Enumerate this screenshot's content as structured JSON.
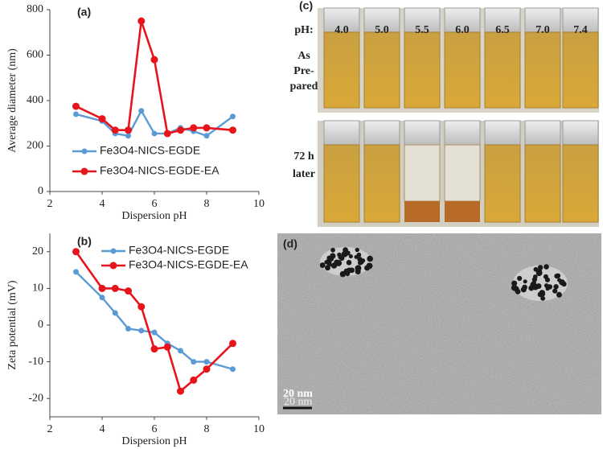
{
  "chart_data": [
    {
      "type": "line",
      "panel_label": "(a)",
      "x_label": "Dispersion pH",
      "y_label": "Average diameter (nm)",
      "x": [
        3,
        4,
        4.5,
        5,
        5.5,
        6,
        6.5,
        7,
        7.5,
        8,
        9
      ],
      "xlim": [
        2,
        10
      ],
      "xticks": [
        2,
        4,
        6,
        8,
        10
      ],
      "ylim": [
        0,
        800
      ],
      "yticks": [
        0,
        200,
        400,
        600,
        800
      ],
      "legend": "lower-left",
      "series": [
        {
          "name": "Fe3O4-NICS-EGDE",
          "color": "#5b9bd5",
          "values": [
            340,
            310,
            255,
            245,
            355,
            255,
            255,
            280,
            265,
            245,
            330
          ]
        },
        {
          "name": "Fe3O4-NICS-EGDE-EA",
          "color": "#e8141c",
          "values": [
            375,
            320,
            270,
            270,
            750,
            580,
            255,
            270,
            280,
            280,
            270
          ]
        }
      ]
    },
    {
      "type": "line",
      "panel_label": "(b)",
      "x_label": "Dispersion pH",
      "y_label": "Zeta potential (mV)",
      "x": [
        3,
        4,
        4.5,
        5,
        5.5,
        6,
        6.5,
        7,
        7.5,
        8,
        9
      ],
      "xlim": [
        2,
        10
      ],
      "xticks": [
        2,
        4,
        6,
        8,
        10
      ],
      "ylim": [
        -25,
        25
      ],
      "yticks": [
        -20,
        -10,
        0,
        10,
        20
      ],
      "legend": "upper-right",
      "series": [
        {
          "name": "Fe3O4-NICS-EGDE",
          "color": "#5b9bd5",
          "values": [
            14.5,
            7.5,
            3.3,
            -1,
            -1.5,
            -2,
            -5,
            -7,
            -10,
            -10,
            -12
          ]
        },
        {
          "name": "Fe3O4-NICS-EGDE-EA",
          "color": "#e8141c",
          "values": [
            20,
            10,
            10,
            9.3,
            5,
            -6.5,
            -6,
            -18,
            -15,
            -12,
            -5
          ]
        }
      ]
    }
  ],
  "panel_c": {
    "label": "(c)",
    "ph_title": "pH:",
    "ph_values": [
      "4.0",
      "5.0",
      "5.5",
      "6.0",
      "6.5",
      "7.0",
      "7.4"
    ],
    "row1": [
      "As",
      "Pre-",
      "pared"
    ],
    "row2": [
      "72 h",
      "later"
    ]
  },
  "panel_d": {
    "label": "(d)",
    "scale": "20 nm",
    "scale_small": "20 nm"
  }
}
